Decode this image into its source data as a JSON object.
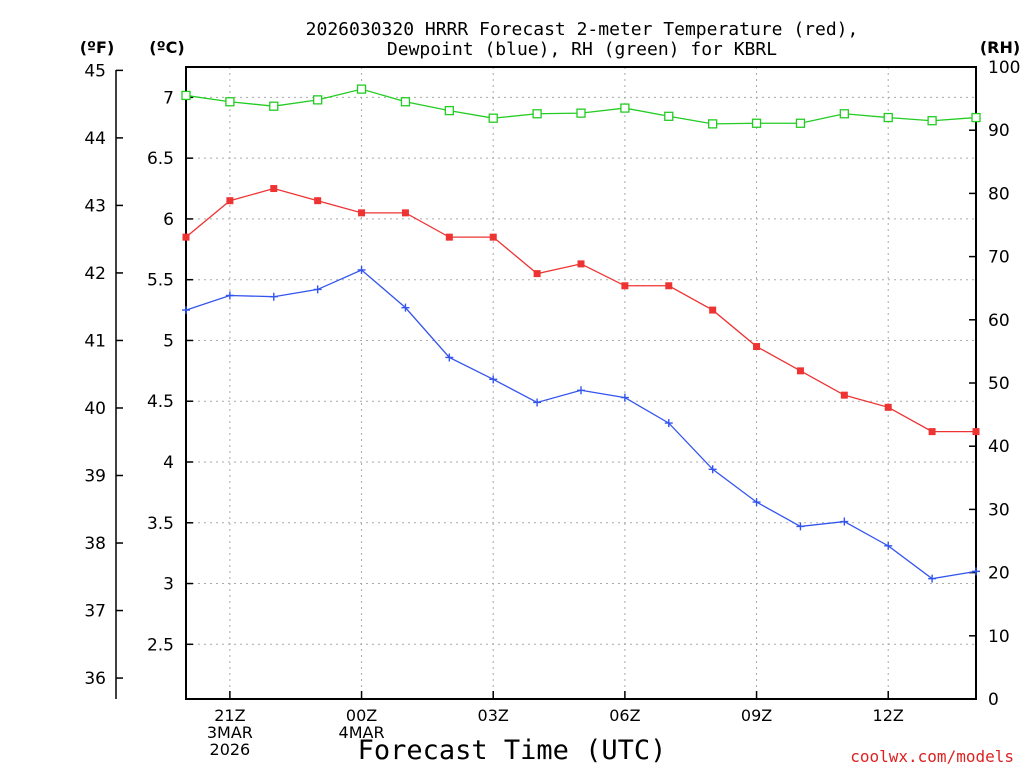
{
  "chart_data": {
    "type": "line",
    "title_line1": "2026030320 HRRR Forecast 2-meter Temperature (red),",
    "title_line2": "Dewpoint (blue), RH (green) for KBRL",
    "xlabel": "Forecast Time (UTC)",
    "credit": "coolwx.com/models",
    "left_outer_unit": "(ºF)",
    "left_inner_unit": "(ºC)",
    "right_unit": "(RH)",
    "x": [
      20,
      21,
      22,
      23,
      24,
      25,
      26,
      27,
      28,
      29,
      30,
      31,
      32,
      33,
      34,
      35,
      36,
      37,
      38
    ],
    "xlim": [
      20,
      38
    ],
    "x_ticks": [
      {
        "x": 21,
        "lines": [
          "21Z",
          "3MAR",
          "2026"
        ]
      },
      {
        "x": 24,
        "lines": [
          "00Z",
          "4MAR"
        ]
      },
      {
        "x": 27,
        "lines": [
          "03Z"
        ]
      },
      {
        "x": 30,
        "lines": [
          "06Z"
        ]
      },
      {
        "x": 33,
        "lines": [
          "09Z"
        ]
      },
      {
        "x": 36,
        "lines": [
          "12Z"
        ]
      }
    ],
    "celsius_axis": {
      "ylim": [
        2.05,
        7.25
      ],
      "ticks": [
        "2.5",
        "3",
        "3.5",
        "4",
        "4.5",
        "5",
        "5.5",
        "6",
        "6.5",
        "7"
      ]
    },
    "fahrenheit_axis": {
      "ticks": [
        "36",
        "37",
        "38",
        "39",
        "40",
        "41",
        "42",
        "43",
        "44",
        "45"
      ]
    },
    "rh_axis": {
      "ylim": [
        0,
        100
      ],
      "ticks": [
        "0",
        "10",
        "20",
        "30",
        "40",
        "50",
        "60",
        "70",
        "80",
        "90",
        "100"
      ]
    },
    "series": [
      {
        "name": "Temperature",
        "axis": "celsius",
        "color": "#ee3333",
        "marker": "filled-square",
        "values": [
          5.85,
          6.15,
          6.25,
          6.15,
          6.05,
          6.05,
          5.85,
          5.85,
          5.55,
          5.63,
          5.45,
          5.45,
          5.25,
          4.95,
          4.75,
          4.55,
          4.45,
          4.25,
          4.25
        ]
      },
      {
        "name": "Dewpoint",
        "axis": "celsius",
        "color": "#3355ee",
        "marker": "plus",
        "values": [
          5.25,
          5.37,
          5.36,
          5.42,
          5.58,
          5.27,
          4.86,
          4.68,
          4.49,
          4.59,
          4.53,
          4.32,
          3.94,
          3.67,
          3.47,
          3.51,
          3.31,
          3.04,
          3.1
        ]
      },
      {
        "name": "RH",
        "axis": "rh",
        "color": "#22cc22",
        "marker": "open-square",
        "values": [
          95.5,
          94.5,
          93.8,
          94.8,
          96.5,
          94.5,
          93.1,
          91.9,
          92.6,
          92.7,
          93.5,
          92.2,
          91.0,
          91.1,
          91.1,
          92.6,
          92.0,
          91.5,
          92.0
        ]
      }
    ]
  }
}
